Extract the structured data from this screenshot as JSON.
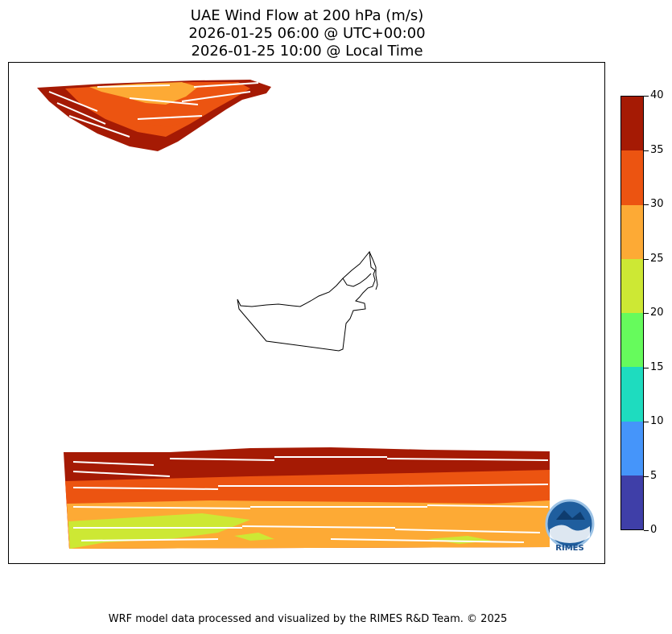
{
  "title": {
    "line1": "UAE Wind Flow at 200 hPa (m/s)",
    "line2": "2026-01-25 06:00 @ UTC+00:00",
    "line3": "2026-01-25 10:00 @ Local Time"
  },
  "colorbar": {
    "levels": [
      "0",
      "5",
      "10",
      "15",
      "20",
      "25",
      "30",
      "35",
      "40"
    ],
    "colors": [
      "#3f3fa8",
      "#4595fa",
      "#1edcbf",
      "#66fb5c",
      "#cde834",
      "#fdaa35",
      "#ec5411",
      "#a51a04"
    ]
  },
  "logo": {
    "text": "RIMES"
  },
  "footer": "WRF model data processed and visualized by the RIMES R&D Team. © 2025"
}
